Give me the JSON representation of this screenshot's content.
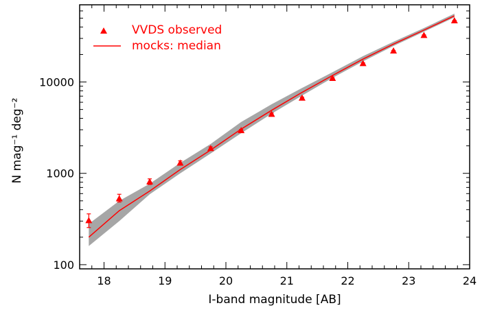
{
  "chart_data": {
    "type": "line",
    "title": "",
    "xlabel": "I-band magnitude [AB]",
    "ylabel": "N mag⁻¹ deg⁻²",
    "xlim": [
      17.6,
      24.0
    ],
    "ylim": [
      90,
      70000
    ],
    "yscale": "log",
    "x_ticks": [
      "18",
      "19",
      "20",
      "21",
      "22",
      "23",
      "24"
    ],
    "y_ticks": [
      "100",
      "1000",
      "10000"
    ],
    "colors": {
      "data": "#ff0000",
      "band": "#a6a6a6",
      "axes": "#000000"
    },
    "legend": {
      "placement": "top-left",
      "observed": "VVDS observed",
      "median": "mocks: median"
    },
    "series": [
      {
        "name": "VVDS observed",
        "kind": "points",
        "x": [
          17.75,
          18.25,
          18.75,
          19.25,
          19.75,
          20.25,
          20.75,
          21.25,
          21.75,
          22.25,
          22.75,
          23.25,
          23.75
        ],
        "y": [
          305,
          530,
          810,
          1300,
          1880,
          2950,
          4450,
          6700,
          11000,
          16000,
          22000,
          32500,
          47000
        ],
        "err_low": [
          255,
          485,
          755,
          1235,
          1810,
          2880,
          4330,
          6580,
          10850,
          15800,
          21800,
          32200,
          46600
        ],
        "err_high": [
          360,
          590,
          870,
          1370,
          1950,
          3030,
          4570,
          6820,
          11150,
          16200,
          22200,
          32800,
          47400
        ]
      },
      {
        "name": "mocks: median",
        "kind": "line",
        "x": [
          17.75,
          18.25,
          18.75,
          19.25,
          19.75,
          20.25,
          20.75,
          21.25,
          21.75,
          22.25,
          22.75,
          23.25,
          23.75
        ],
        "y": [
          200,
          390,
          640,
          1100,
          1800,
          3050,
          4900,
          7700,
          11800,
          17800,
          26000,
          37000,
          53000
        ],
        "band_low": [
          160,
          300,
          590,
          1000,
          1650,
          2750,
          4500,
          7100,
          11100,
          16800,
          24800,
          35500,
          51000
        ],
        "band_high": [
          280,
          500,
          770,
          1300,
          2100,
          3650,
          5700,
          8600,
          12800,
          19200,
          27600,
          39000,
          56000
        ]
      }
    ]
  }
}
